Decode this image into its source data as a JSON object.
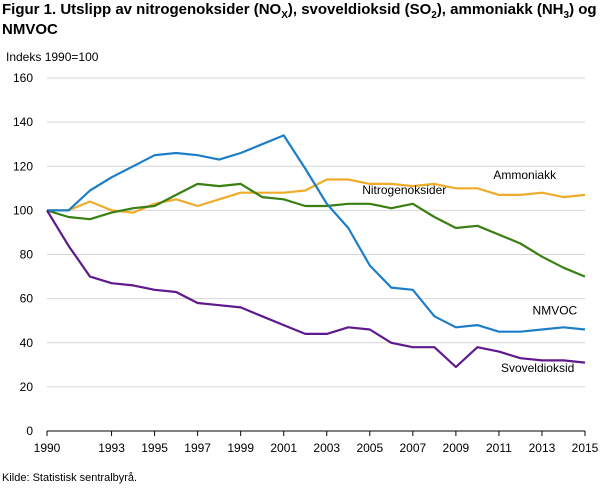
{
  "figure": {
    "title_pre": "Figur 1. Utslipp av nitrogenoksider (NO",
    "title_sub1": "X",
    "title_mid1": "), svoveldioksid (SO",
    "title_sub2": "2",
    "title_mid2": "), ammoniakk (NH",
    "title_sub3": "3",
    "title_post": ") og NMVOC",
    "unit": "Indeks 1990=100",
    "source": "Kilde: Statistisk sentralbyrå."
  },
  "chart_data": {
    "type": "line",
    "title": "Figur 1. Utslipp av nitrogenoksider (NOX), svoveldioksid (SO2), ammoniakk (NH3) og NMVOC",
    "ylabel": "Indeks 1990=100",
    "xlabel": "",
    "ylim": [
      0,
      160
    ],
    "yticks": [
      0,
      20,
      40,
      60,
      80,
      100,
      120,
      140,
      160
    ],
    "xlim": [
      1990,
      2015
    ],
    "xticks": [
      1990,
      1993,
      1995,
      1997,
      1999,
      2001,
      2003,
      2005,
      2007,
      2009,
      2011,
      2013,
      2015
    ],
    "grid": "horizontal",
    "x": [
      1990,
      1991,
      1992,
      1993,
      1994,
      1995,
      1996,
      1997,
      1998,
      1999,
      2000,
      2001,
      2002,
      2003,
      2004,
      2005,
      2006,
      2007,
      2008,
      2009,
      2010,
      2011,
      2012,
      2013,
      2014,
      2015
    ],
    "series": [
      {
        "name": "Ammoniakk",
        "color": "#f0ab2a",
        "values": [
          100,
          100,
          104,
          100,
          99,
          103,
          105,
          102,
          105,
          108,
          108,
          108,
          109,
          114,
          114,
          112,
          112,
          111,
          112,
          110,
          110,
          107,
          107,
          108,
          106,
          107
        ]
      },
      {
        "name": "Nitrogenoksider",
        "color": "#3a7f14",
        "values": [
          100,
          97,
          96,
          99,
          101,
          102,
          107,
          112,
          111,
          112,
          106,
          105,
          102,
          102,
          103,
          103,
          101,
          103,
          97,
          92,
          93,
          89,
          85,
          79,
          74,
          70
        ]
      },
      {
        "name": "NMVOC",
        "color": "#1d7ec8",
        "values": [
          100,
          100,
          109,
          115,
          120,
          125,
          126,
          125,
          123,
          126,
          130,
          134,
          119,
          103,
          92,
          75,
          65,
          64,
          52,
          47,
          48,
          45,
          45,
          46,
          47,
          46
        ]
      },
      {
        "name": "Svoveldioksid",
        "color": "#5e1a8c",
        "values": [
          100,
          84,
          70,
          67,
          66,
          64,
          63,
          58,
          57,
          56,
          52,
          48,
          44,
          44,
          47,
          46,
          40,
          38,
          38,
          29,
          38,
          36,
          33,
          32,
          32,
          31
        ]
      }
    ]
  }
}
